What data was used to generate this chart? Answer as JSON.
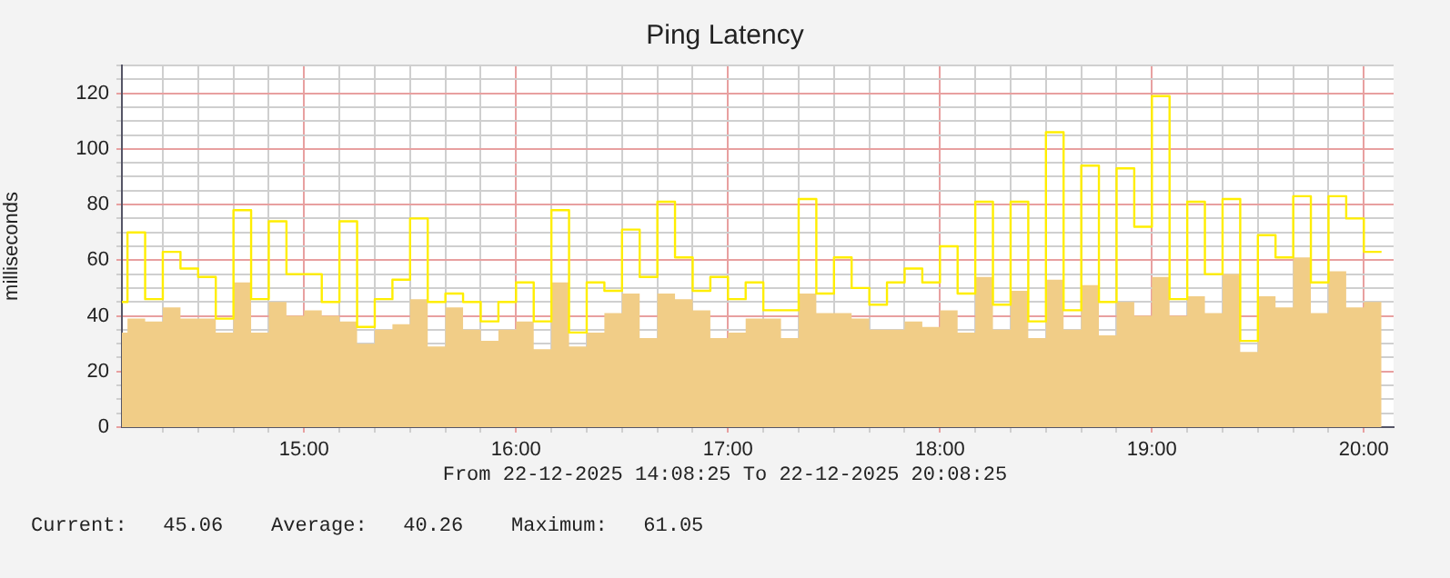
{
  "chart_data": {
    "type": "step",
    "title": "Ping Latency",
    "ylabel": "milliseconds",
    "annotations": [
      "From 22-12-2025 14:08:25 To 22-12-2025 20:08:25",
      "Current:   45.06    Average:   40.26    Maximum:   61.05"
    ],
    "x": [
      14.1667,
      14.25,
      14.3333,
      14.4167,
      14.5,
      14.5833,
      14.6667,
      14.75,
      14.8333,
      14.9167,
      15,
      15.0833,
      15.1667,
      15.25,
      15.3333,
      15.4167,
      15.5,
      15.5833,
      15.6667,
      15.75,
      15.8333,
      15.9167,
      16,
      16.0833,
      16.1667,
      16.25,
      16.3333,
      16.4167,
      16.5,
      16.5833,
      16.6667,
      16.75,
      16.8333,
      16.9167,
      17,
      17.0833,
      17.1667,
      17.25,
      17.3333,
      17.4167,
      17.5,
      17.5833,
      17.6667,
      17.75,
      17.8333,
      17.9167,
      18,
      18.0833,
      18.1667,
      18.25,
      18.3333,
      18.4167,
      18.5,
      18.5833,
      18.6667,
      18.75,
      18.8333,
      18.9167,
      19,
      19.0833,
      19.1667,
      19.25,
      19.3333,
      19.4167,
      19.5,
      19.5833,
      19.6667,
      19.75,
      19.8333,
      19.9167,
      20,
      20.0833
    ],
    "series": [
      {
        "type": "area",
        "color": "#f1cd87",
        "values": [
          34,
          39,
          38,
          43,
          39,
          39,
          34,
          52,
          34,
          45,
          40,
          42,
          40,
          38,
          30,
          35,
          37,
          46,
          29,
          43,
          35,
          31,
          35,
          38,
          28,
          52,
          29,
          34,
          41,
          48,
          32,
          48,
          46,
          42,
          32,
          34,
          39,
          39,
          32,
          48,
          41,
          41,
          39,
          35,
          35,
          38,
          36,
          42,
          34,
          54,
          35,
          49,
          32,
          53,
          35,
          51,
          33,
          45,
          40,
          54,
          40,
          47,
          41,
          55,
          27,
          47,
          43,
          61,
          41,
          56,
          43,
          45
        ]
      },
      {
        "color": "#ffee00",
        "values": [
          45,
          70,
          46,
          63,
          57,
          54,
          39,
          78,
          46,
          74,
          55,
          55,
          45,
          74,
          36,
          46,
          53,
          75,
          45,
          48,
          45,
          38,
          45,
          52,
          38,
          78,
          34,
          52,
          49,
          71,
          54,
          81,
          61,
          49,
          54,
          46,
          52,
          42,
          42,
          82,
          48,
          61,
          50,
          44,
          52,
          57,
          52,
          65,
          48,
          81,
          44,
          81,
          38,
          106,
          42,
          94,
          45,
          93,
          72,
          119,
          46,
          81,
          55,
          82,
          31,
          69,
          61,
          83,
          52,
          83,
          75,
          63
        ]
      }
    ],
    "xlim": [
      14.1403,
      20.1403
    ],
    "xticks": [
      {
        "value": 14.3333,
        "label": null
      },
      {
        "value": 14.5,
        "label": null
      },
      {
        "value": 14.6667,
        "label": null
      },
      {
        "value": 14.8333,
        "label": null
      },
      {
        "value": 15,
        "label": "15:00"
      },
      {
        "value": 15.1667,
        "label": null
      },
      {
        "value": 15.3333,
        "label": null
      },
      {
        "value": 15.5,
        "label": null
      },
      {
        "value": 15.6667,
        "label": null
      },
      {
        "value": 15.8333,
        "label": null
      },
      {
        "value": 16,
        "label": "16:00"
      },
      {
        "value": 16.1667,
        "label": null
      },
      {
        "value": 16.3333,
        "label": null
      },
      {
        "value": 16.5,
        "label": null
      },
      {
        "value": 16.6667,
        "label": null
      },
      {
        "value": 16.8333,
        "label": null
      },
      {
        "value": 17,
        "label": "17:00"
      },
      {
        "value": 17.1667,
        "label": null
      },
      {
        "value": 17.3333,
        "label": null
      },
      {
        "value": 17.5,
        "label": null
      },
      {
        "value": 17.6667,
        "label": null
      },
      {
        "value": 17.8333,
        "label": null
      },
      {
        "value": 18,
        "label": "18:00"
      },
      {
        "value": 18.1667,
        "label": null
      },
      {
        "value": 18.3333,
        "label": null
      },
      {
        "value": 18.5,
        "label": null
      },
      {
        "value": 18.6667,
        "label": null
      },
      {
        "value": 18.8333,
        "label": null
      },
      {
        "value": 19,
        "label": "19:00"
      },
      {
        "value": 19.1667,
        "label": null
      },
      {
        "value": 19.3333,
        "label": null
      },
      {
        "value": 19.5,
        "label": null
      },
      {
        "value": 19.6667,
        "label": null
      },
      {
        "value": 19.8333,
        "label": null
      },
      {
        "value": 20,
        "label": "20:00"
      }
    ],
    "ylim": [
      0,
      130
    ],
    "yticks": [
      0,
      {
        "value": 5,
        "label": null
      },
      {
        "value": 10,
        "label": null
      },
      {
        "value": 15,
        "label": null
      },
      20,
      {
        "value": 25,
        "label": null
      },
      {
        "value": 30,
        "label": null
      },
      {
        "value": 35,
        "label": null
      },
      40,
      {
        "value": 45,
        "label": null
      },
      {
        "value": 50,
        "label": null
      },
      {
        "value": 55,
        "label": null
      },
      60,
      {
        "value": 65,
        "label": null
      },
      {
        "value": 70,
        "label": null
      },
      {
        "value": 75,
        "label": null
      },
      80,
      {
        "value": 85,
        "label": null
      },
      {
        "value": 90,
        "label": null
      },
      {
        "value": 95,
        "label": null
      },
      100,
      {
        "value": 105,
        "label": null
      },
      {
        "value": 110,
        "label": null
      },
      {
        "value": 115,
        "label": null
      },
      120,
      {
        "value": 125,
        "label": null
      },
      {
        "value": 130,
        "label": null
      }
    ],
    "grid": true,
    "legend": false
  }
}
